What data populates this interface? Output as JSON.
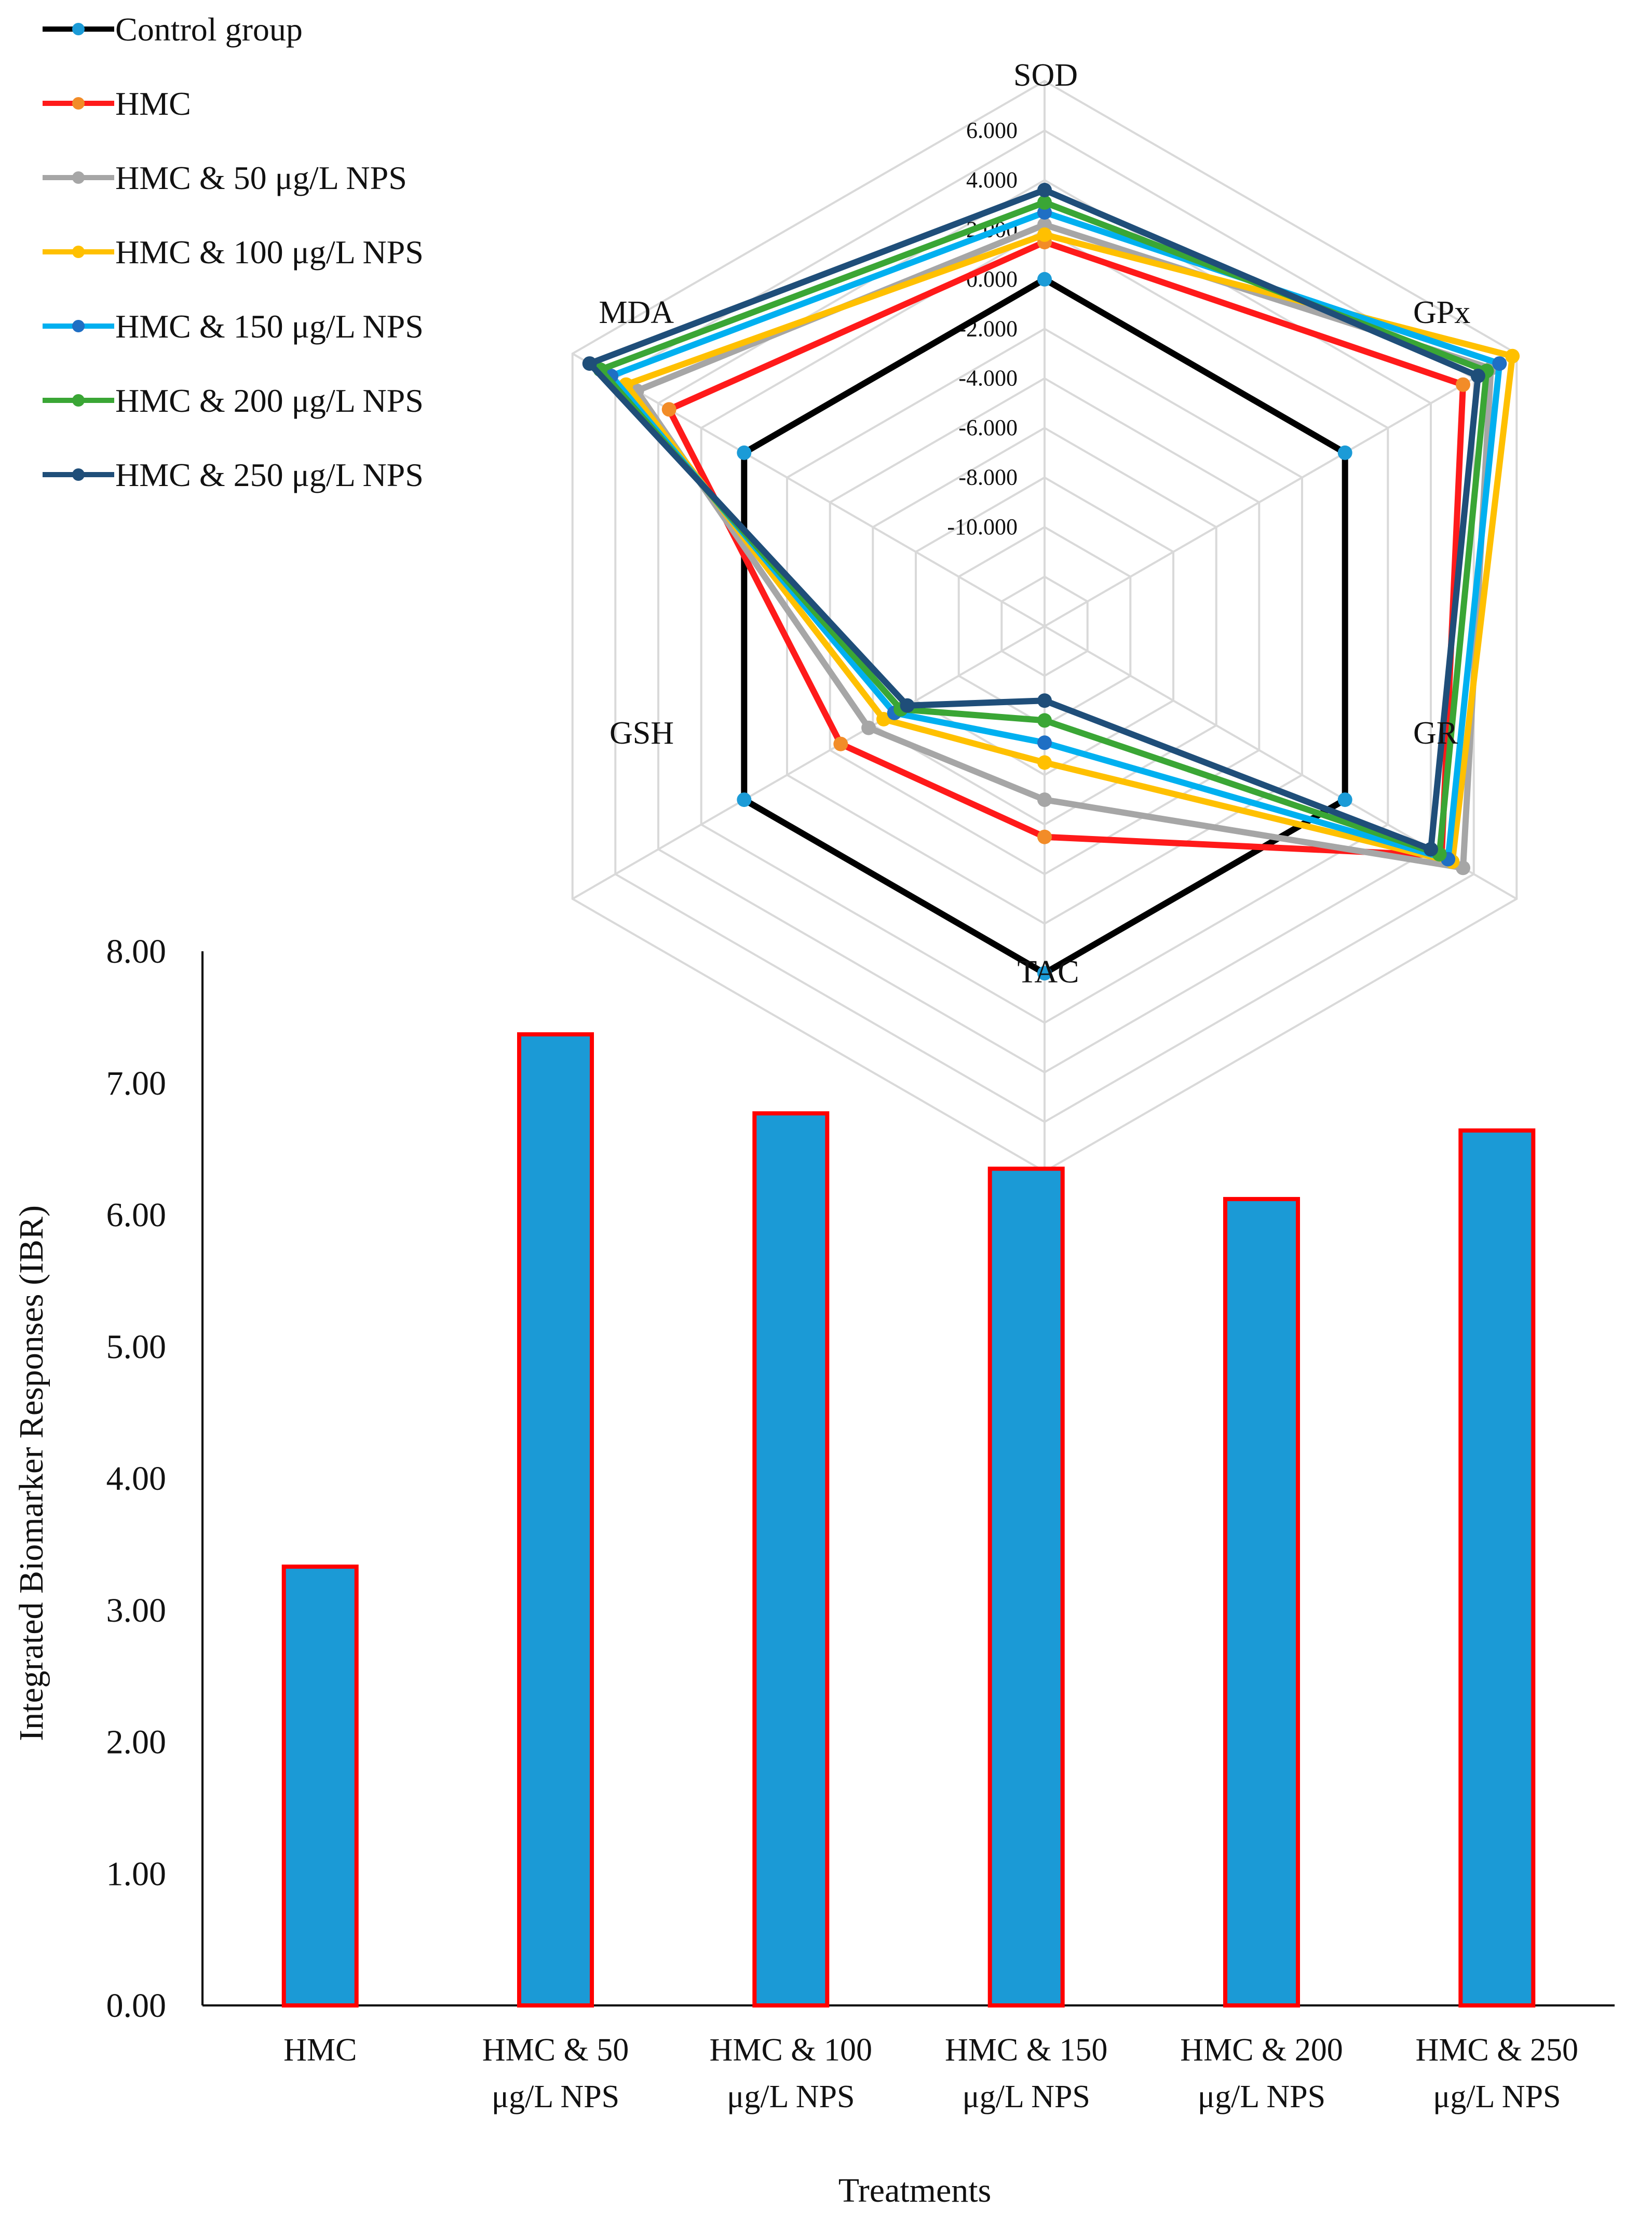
{
  "chart_data": [
    {
      "type": "radar",
      "axes": [
        "SOD",
        "GPx",
        "GR",
        "TAC",
        "GSH",
        "MDA"
      ],
      "range": [
        -14,
        8
      ],
      "ticks": [
        {
          "value": 6,
          "label": "6.000"
        },
        {
          "value": 4,
          "label": "4.000"
        },
        {
          "value": 2,
          "label": "2.000"
        },
        {
          "value": 0,
          "label": "0.000"
        },
        {
          "value": -2,
          "label": "-2.000"
        },
        {
          "value": -4,
          "label": "-4.000"
        },
        {
          "value": -6,
          "label": "-6.000"
        },
        {
          "value": -8,
          "label": "-8.000"
        },
        {
          "value": -10,
          "label": "-10.000"
        }
      ],
      "series": [
        {
          "name": "Control group",
          "line_color": "#000000",
          "marker_color": "#1b9bd7",
          "values": [
            0,
            0,
            0,
            0,
            0,
            0
          ]
        },
        {
          "name": "HMC",
          "line_color": "#ff1a1a",
          "marker_color": "#f28c28",
          "values": [
            1.5,
            5.5,
            4.5,
            -5.5,
            -4.5,
            3.5
          ]
        },
        {
          "name": "HMC & 50 μg/L NPS",
          "line_color": "#a6a6a6",
          "marker_color": "#a6a6a6",
          "values": [
            2.2,
            6.8,
            5.5,
            -7.0,
            -5.8,
            5.0
          ]
        },
        {
          "name": "HMC & 100 μg/L NPS",
          "line_color": "#ffc000",
          "marker_color": "#ffc000",
          "values": [
            1.8,
            7.8,
            5.0,
            -8.5,
            -6.5,
            5.5
          ]
        },
        {
          "name": "HMC & 150 μg/L NPS",
          "line_color": "#00b0f0",
          "marker_color": "#1f6fc4",
          "values": [
            2.7,
            7.2,
            4.8,
            -9.3,
            -7.0,
            6.2
          ]
        },
        {
          "name": "HMC & 200 μg/L NPS",
          "line_color": "#3aa635",
          "marker_color": "#3aa635",
          "values": [
            3.1,
            6.6,
            4.4,
            -10.2,
            -7.3,
            6.7
          ]
        },
        {
          "name": "HMC & 250 μg/L NPS",
          "line_color": "#1f4e79",
          "marker_color": "#1f4e79",
          "values": [
            3.6,
            6.2,
            4.0,
            -11.0,
            -7.6,
            7.2
          ]
        }
      ]
    },
    {
      "type": "bar",
      "categories": [
        [
          "HMC"
        ],
        [
          "HMC & 50",
          "μg/L NPS"
        ],
        [
          "HMC & 100",
          "μg/L NPS"
        ],
        [
          "HMC & 150",
          "μg/L NPS"
        ],
        [
          "HMC & 200",
          "μg/L NPS"
        ],
        [
          "HMC & 250",
          "μg/L NPS"
        ]
      ],
      "values": [
        3.33,
        7.37,
        6.77,
        6.35,
        6.12,
        6.64
      ],
      "ylabel": "Integrated Biomarker Responses (IBR)",
      "xlabel": "Treatments",
      "ylim": [
        0,
        8
      ],
      "yticks": [
        "0.00",
        "1.00",
        "2.00",
        "3.00",
        "4.00",
        "5.00",
        "6.00",
        "7.00",
        "8.00"
      ],
      "bar_fill": "#1b9ad6",
      "bar_edge": "#ff0000"
    }
  ]
}
